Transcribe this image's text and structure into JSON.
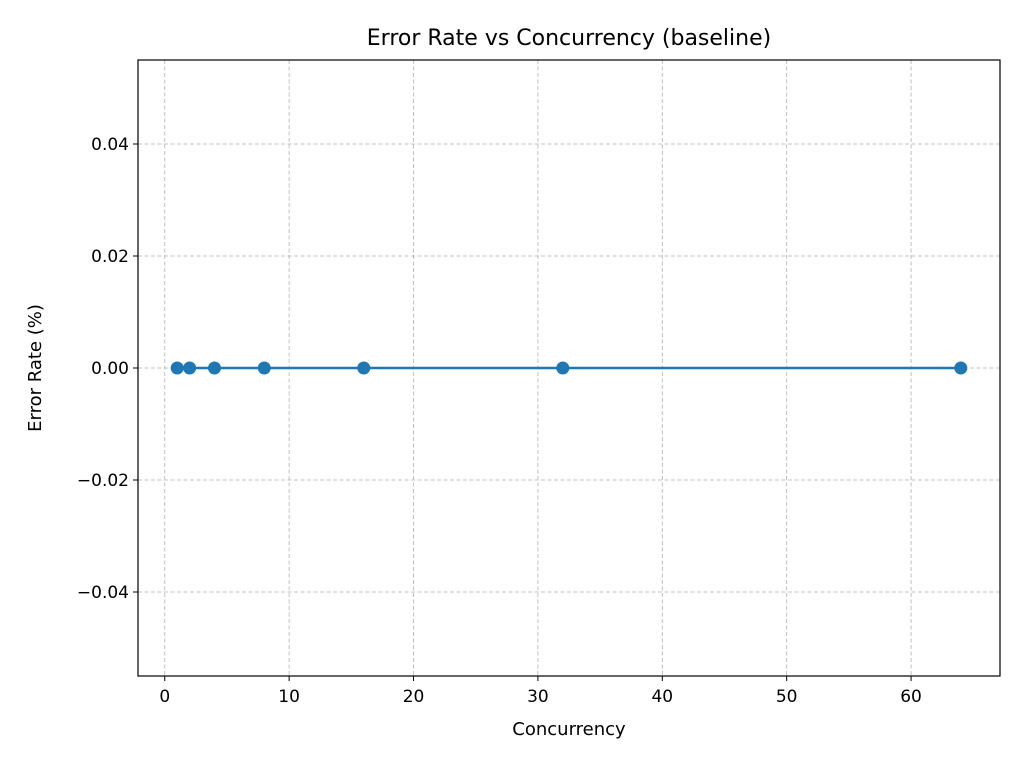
{
  "chart_data": {
    "type": "line",
    "title": "Error Rate vs Concurrency (baseline)",
    "xlabel": "Concurrency",
    "ylabel": "Error Rate (%)",
    "xlim": [
      -2.15,
      67.15
    ],
    "ylim": [
      -0.055,
      0.055
    ],
    "xticks": [
      0,
      10,
      20,
      30,
      40,
      50,
      60
    ],
    "xtick_labels": [
      "0",
      "10",
      "20",
      "30",
      "40",
      "50",
      "60"
    ],
    "yticks": [
      -0.04,
      -0.02,
      0.0,
      0.02,
      0.04
    ],
    "ytick_labels": [
      "−0.04",
      "−0.02",
      "0.00",
      "0.02",
      "0.04"
    ],
    "grid": true,
    "series": [
      {
        "name": "baseline",
        "color": "#1f77b4",
        "marker": "circle",
        "x": [
          1,
          2,
          4,
          8,
          16,
          32,
          64
        ],
        "y": [
          0,
          0,
          0,
          0,
          0,
          0,
          0
        ]
      }
    ]
  }
}
